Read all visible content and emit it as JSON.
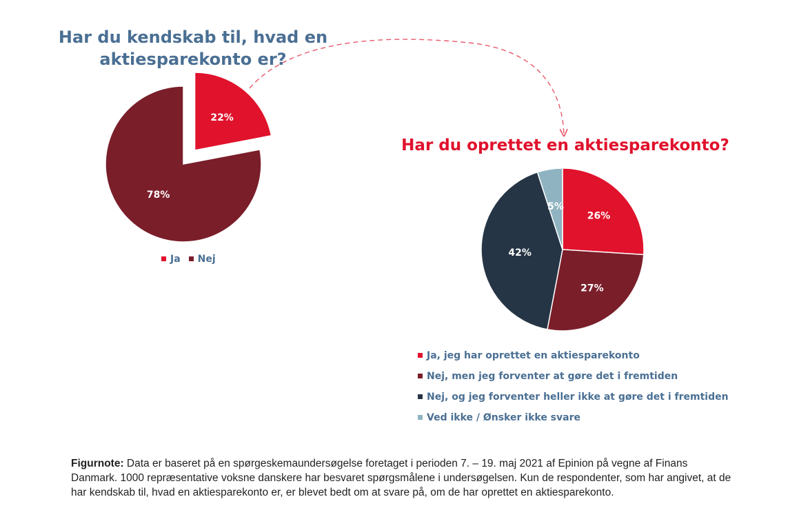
{
  "chart_data": [
    {
      "type": "pie",
      "title": "Har du kendskab til, hvad en aktiesparekonto er?",
      "categories": [
        "Ja",
        "Nej"
      ],
      "values": [
        22,
        78
      ],
      "value_labels": [
        "22%",
        "78%"
      ],
      "colors": [
        "#e0122c",
        "#7a1e2a"
      ],
      "exploded": "Ja",
      "legend_position": "bottom"
    },
    {
      "type": "pie",
      "title": "Har du oprettet en aktiesparekonto?",
      "categories": [
        "Ja, jeg har oprettet en aktiesparekonto",
        "Nej, men jeg forventer at gøre det i fremtiden",
        "Nej, og jeg forventer heller ikke at gøre det i fremtiden",
        "Ved ikke / Ønsker ikke svare"
      ],
      "values": [
        26,
        27,
        42,
        5
      ],
      "value_labels": [
        "26%",
        "27%",
        "42%",
        "5%"
      ],
      "colors": [
        "#e0122c",
        "#7a1e2a",
        "#263545",
        "#8fb3c0"
      ],
      "legend_position": "bottom"
    }
  ],
  "figure_note": {
    "label": "Figurnote:",
    "text": " Data er baseret på en spørgeskemaundersøgelse foretaget i perioden 7. – 19. maj 2021 af Epinion på vegne af Finans Danmark. 1000 repræsentative voksne danskere har besvaret spørgsmålene i undersøgelsen. Kun de respondenter, som har angivet, at de har kendskab til, hvad en aktiesparekonto er, er blevet bedt om at svare på, om de har oprettet en aktiesparekonto."
  }
}
